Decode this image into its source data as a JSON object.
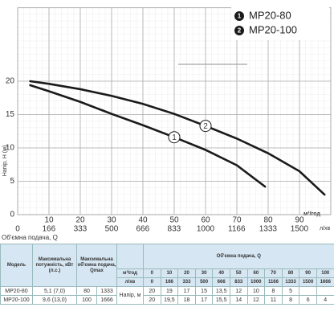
{
  "chart_data": {
    "type": "line",
    "y_label": "Напір, Н (м)",
    "x_label": "Об'ємна подача, Q",
    "x_unit": "м³/год",
    "x2_unit": "л/хв",
    "xlim": [
      0,
      100
    ],
    "xticks": [
      10,
      20,
      30,
      40,
      50,
      60,
      70,
      80,
      90
    ],
    "x2lim": [
      0,
      1667
    ],
    "x2ticks": [
      0,
      166,
      333,
      500,
      666,
      833,
      1000,
      1166,
      1333,
      1500
    ],
    "ylim": [
      0,
      31
    ],
    "yticks": [
      0,
      5,
      10,
      15,
      20
    ],
    "grid": true,
    "legend": "upper right",
    "series": [
      {
        "name": "MP20-80",
        "label": "1",
        "color": "#1a1a1a",
        "x": [
          4,
          10,
          20,
          30,
          40,
          50,
          60,
          70,
          79
        ],
        "values": [
          19.4,
          18.5,
          16.9,
          15.1,
          13.4,
          11.6,
          9.7,
          7.4,
          4.2
        ]
      },
      {
        "name": "MP20-100",
        "label": "2",
        "color": "#1a1a1a",
        "x": [
          4,
          10,
          20,
          30,
          40,
          50,
          60,
          70,
          80,
          90,
          98
        ],
        "values": [
          20,
          19.6,
          18.8,
          17.8,
          16.6,
          15.1,
          13.3,
          11.4,
          9.2,
          6.5,
          3
        ]
      }
    ]
  },
  "table": {
    "headers": {
      "model": "Модель",
      "power": "Максимальна потужність, кВт (л.с.)",
      "qmax": "Максимальна об'ємна подача, Qmax",
      "flow": "Об'ємна подача, Q",
      "unit_m3": "м³/год",
      "unit_lmin": "л/хв",
      "head": "Напір, м"
    },
    "flow_m3": [
      0,
      10,
      20,
      30,
      40,
      50,
      60,
      70,
      80,
      90,
      100
    ],
    "flow_lmin": [
      0,
      166,
      333,
      500,
      666,
      833,
      1000,
      1166,
      1333,
      1500,
      1666
    ],
    "rows": [
      {
        "model": "MP20-80",
        "power": "5,1 (7,0)",
        "qmax_m3": 80,
        "qmax_lmin": 1333,
        "head": [
          20,
          19,
          17,
          15,
          "13,5",
          12,
          10,
          8,
          5
        ]
      },
      {
        "model": "MP20-100",
        "power": "9,6 (13,0)",
        "qmax_m3": 100,
        "qmax_lmin": 1666,
        "head": [
          20,
          "19,5",
          18,
          17,
          "15,5",
          14,
          12,
          11,
          8,
          6,
          4
        ]
      }
    ]
  }
}
